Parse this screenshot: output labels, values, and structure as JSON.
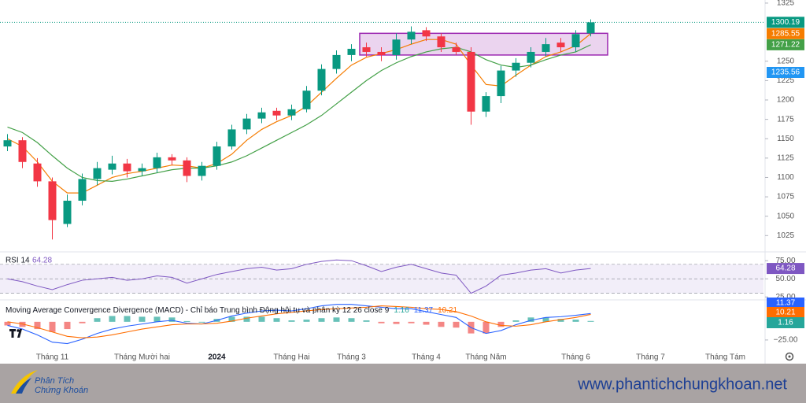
{
  "chart_data": [
    {
      "type": "candlestick",
      "categories": [
        null,
        null,
        null,
        "Tháng 11",
        null,
        null,
        null,
        null,
        null,
        "Tháng Mười hai",
        null,
        null,
        null,
        null,
        "2024",
        null,
        null,
        null,
        null,
        "Tháng Hai",
        null,
        null,
        null,
        "Tháng 3",
        null,
        null,
        null,
        null,
        "Tháng 4",
        null,
        null,
        null,
        "Tháng Năm",
        null,
        null,
        null,
        null,
        null,
        "Tháng 6",
        null,
        null,
        null,
        null,
        "Tháng 7",
        null,
        null,
        null,
        null,
        "Tháng Tám",
        null,
        null
      ],
      "open": [
        1140,
        1148,
        1118,
        1095,
        1040,
        1070,
        1098,
        1110,
        1118,
        1108,
        1112,
        1126,
        1122,
        1102,
        1115,
        1140,
        1162,
        1176,
        1186,
        1180,
        1188,
        1212,
        1240,
        1258,
        1268,
        1262,
        1258,
        1278,
        1290,
        1282,
        1268,
        1262,
        1185,
        1205,
        1238,
        1248,
        1262,
        1274,
        1268,
        1286,
        null,
        null,
        null,
        null,
        null,
        null,
        null,
        null,
        null,
        null,
        null
      ],
      "high": [
        1156,
        1152,
        1125,
        1100,
        1078,
        1105,
        1120,
        1128,
        1124,
        1118,
        1132,
        1130,
        1126,
        1120,
        1146,
        1168,
        1182,
        1190,
        1190,
        1194,
        1218,
        1246,
        1264,
        1272,
        1274,
        1268,
        1286,
        1295,
        1294,
        1286,
        1274,
        1268,
        1210,
        1244,
        1254,
        1268,
        1280,
        1280,
        1290,
        1304,
        null,
        null,
        null,
        null,
        null,
        null,
        null,
        null,
        null,
        null,
        null
      ],
      "low": [
        1134,
        1112,
        1088,
        1020,
        1036,
        1064,
        1090,
        1104,
        1100,
        1102,
        1106,
        1116,
        1094,
        1096,
        1110,
        1136,
        1156,
        1170,
        1174,
        1174,
        1184,
        1206,
        1234,
        1250,
        1256,
        1250,
        1252,
        1272,
        1276,
        1262,
        1258,
        1168,
        1178,
        1196,
        1230,
        1242,
        1256,
        1262,
        1262,
        1282,
        null,
        null,
        null,
        null,
        null,
        null,
        null,
        null,
        null,
        null,
        null
      ],
      "close": [
        1148,
        1120,
        1095,
        1045,
        1070,
        1098,
        1112,
        1118,
        1108,
        1112,
        1126,
        1122,
        1102,
        1115,
        1140,
        1162,
        1176,
        1184,
        1180,
        1188,
        1212,
        1240,
        1258,
        1266,
        1262,
        1258,
        1278,
        1288,
        1282,
        1268,
        1262,
        1185,
        1205,
        1238,
        1248,
        1262,
        1272,
        1268,
        1285,
        1300.19,
        null,
        null,
        null,
        null,
        null,
        null,
        null,
        null,
        null,
        null,
        null
      ],
      "colors": {
        "up": "#089981",
        "down": "#f23645"
      },
      "lines": [
        {
          "color": "#f57c00",
          "values": [
            1150,
            1140,
            1120,
            1095,
            1080,
            1080,
            1090,
            1100,
            1105,
            1108,
            1112,
            1116,
            1115,
            1112,
            1118,
            1130,
            1148,
            1162,
            1172,
            1180,
            1192,
            1210,
            1228,
            1245,
            1255,
            1260,
            1265,
            1272,
            1278,
            1278,
            1272,
            1245,
            1220,
            1218,
            1232,
            1245,
            1256,
            1262,
            1270,
            1285.55,
            null,
            null,
            null,
            null,
            null,
            null,
            null,
            null,
            null,
            null,
            null
          ]
        },
        {
          "color": "#43a047",
          "values": [
            1165,
            1158,
            1145,
            1128,
            1112,
            1100,
            1096,
            1095,
            1098,
            1102,
            1106,
            1110,
            1112,
            1112,
            1115,
            1120,
            1128,
            1138,
            1148,
            1158,
            1168,
            1180,
            1195,
            1210,
            1225,
            1238,
            1248,
            1256,
            1262,
            1266,
            1268,
            1262,
            1252,
            1245,
            1242,
            1245,
            1252,
            1258,
            1262,
            1271.22,
            null,
            null,
            null,
            null,
            null,
            null,
            null,
            null,
            null,
            null,
            null
          ]
        }
      ],
      "marker_labels": [
        {
          "value": 1235.56,
          "color": "#2196f3"
        }
      ],
      "zone": {
        "ylim": [
          1258,
          1286
        ],
        "color": "#9c27b0"
      },
      "ylim": [
        1006,
        1329
      ],
      "yticks": [
        1025,
        1050,
        1075,
        1100,
        1125,
        1150,
        1175,
        1200,
        1225,
        1250,
        1325
      ],
      "grid": false
    },
    {
      "type": "line",
      "title": "RSI 14",
      "color": "#7e57c2",
      "values": [
        50,
        46,
        40,
        35,
        42,
        48,
        50,
        52,
        48,
        50,
        54,
        52,
        44,
        50,
        56,
        60,
        64,
        66,
        62,
        64,
        70,
        74,
        76,
        75,
        68,
        60,
        66,
        70,
        64,
        58,
        55,
        30,
        40,
        55,
        58,
        62,
        64,
        58,
        62,
        64.28
      ],
      "levels": [
        70,
        50,
        30
      ],
      "ylim": [
        22,
        85
      ],
      "yticks": [
        {
          "value": 75,
          "label": "75.00"
        },
        {
          "value": 50,
          "label": "50.00"
        },
        {
          "value": 25,
          "label": "25.00"
        }
      ]
    },
    {
      "type": "macd",
      "title": "Moving Average Convergence Divergence (MACD) - Chỉ báo Trung bình Động hội tụ và phân kỳ 12 26 close 9",
      "histogram": {
        "colors": {
          "up": "#26a69a",
          "down": "#ef5350"
        },
        "values": [
          -5,
          -7,
          -10,
          -14,
          -10,
          -2,
          5,
          8,
          8,
          7,
          7,
          6,
          1,
          0,
          4,
          7,
          7,
          7,
          5,
          2,
          3,
          5,
          6,
          5,
          2,
          -2,
          -3,
          -2,
          -4,
          -7,
          -8,
          -16,
          -16,
          -7,
          2,
          6,
          6,
          4,
          3,
          1.16
        ]
      },
      "series": [
        {
          "color": "#2962ff",
          "values": [
            -5,
            -10,
            -18,
            -28,
            -30,
            -24,
            -16,
            -10,
            -6,
            -3,
            0,
            2,
            -2,
            -3,
            2,
            8,
            12,
            15,
            16,
            15,
            18,
            22,
            24,
            24,
            22,
            20,
            18,
            18,
            14,
            10,
            6,
            -8,
            -16,
            -12,
            -4,
            2,
            6,
            7,
            9,
            11.37
          ]
        },
        {
          "color": "#ff6d00",
          "values": [
            0,
            -3,
            -8,
            -14,
            -20,
            -22,
            -21,
            -18,
            -14,
            -10,
            -7,
            -4,
            -3,
            -3,
            -2,
            1,
            5,
            8,
            11,
            13,
            15,
            17,
            18,
            19,
            20,
            22,
            21,
            20,
            18,
            17,
            14,
            8,
            0,
            -5,
            -6,
            -4,
            0,
            3,
            6,
            10.21
          ]
        }
      ],
      "ylim": [
        -50,
        28
      ],
      "yticks": [
        {
          "value": -25,
          "label": "−25.00"
        }
      ]
    }
  ],
  "footer": {
    "brand_line1": "Phân Tích",
    "brand_line2": "Chứng Khoán",
    "url": "www.phantichchungkhoan.net"
  }
}
